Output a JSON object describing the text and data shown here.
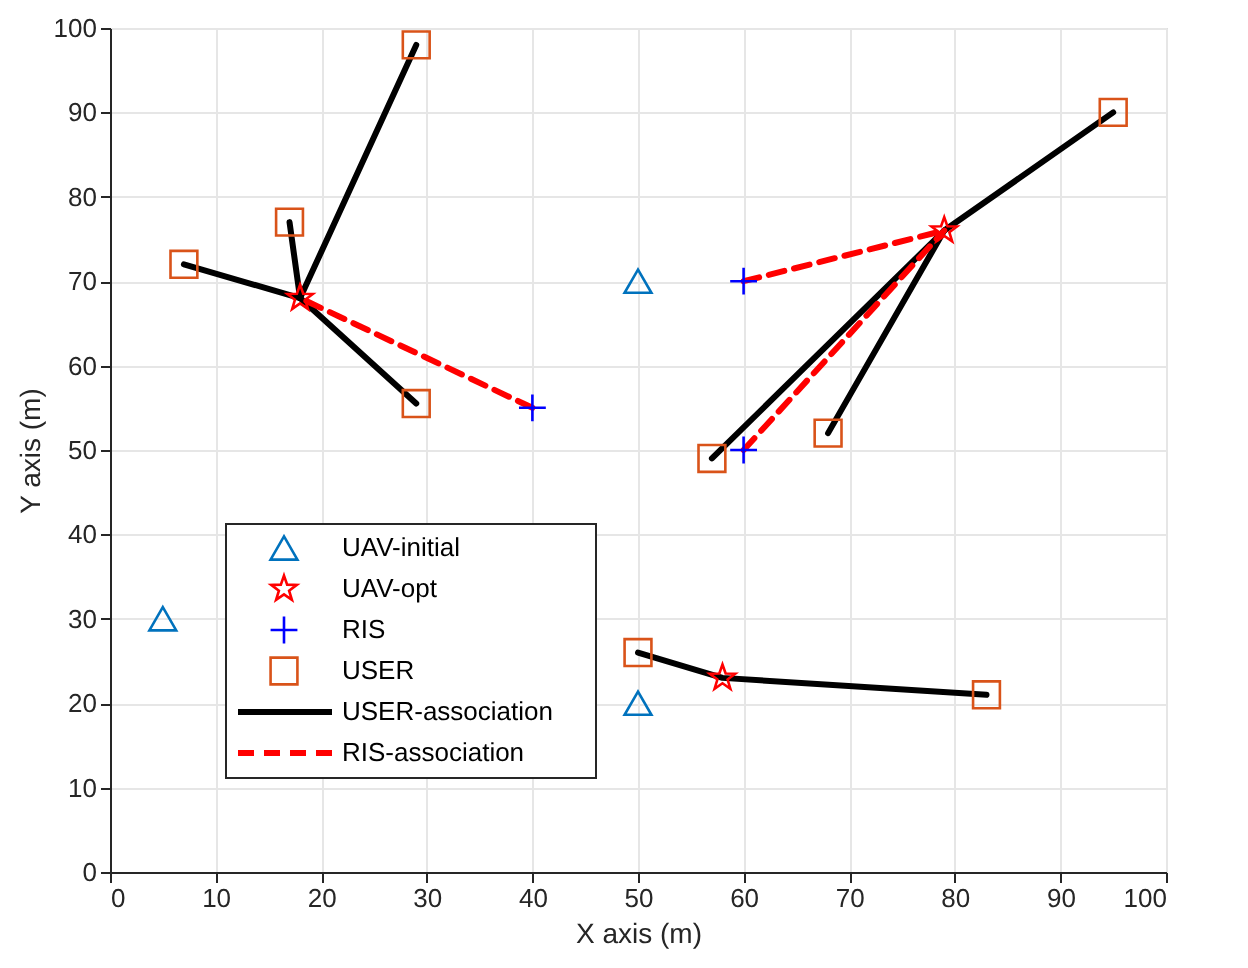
{
  "chart_data": {
    "type": "scatter",
    "xlabel": "X axis (m)",
    "ylabel": "Y axis (m)",
    "xlim": [
      0,
      100
    ],
    "ylim": [
      0,
      100
    ],
    "xticks": [
      0,
      10,
      20,
      30,
      40,
      50,
      60,
      70,
      80,
      90,
      100
    ],
    "yticks": [
      0,
      10,
      20,
      30,
      40,
      50,
      60,
      70,
      80,
      90,
      100
    ],
    "grid": true,
    "legend": "bottom left",
    "series": [
      {
        "name": "UAV-initial",
        "marker": "triangle",
        "color": "#0072bd",
        "x": [
          5,
          50,
          50
        ],
        "values": [
          30,
          70,
          20
        ]
      },
      {
        "name": "UAV-opt",
        "marker": "star",
        "color": "#ff0000",
        "x": [
          18,
          79,
          58
        ],
        "values": [
          68,
          76,
          23
        ]
      },
      {
        "name": "RIS",
        "marker": "cross",
        "color": "#0000ff",
        "x": [
          40,
          60,
          60
        ],
        "values": [
          55,
          70,
          50
        ]
      },
      {
        "name": "USER",
        "marker": "square",
        "color": "#d95319",
        "x": [
          7,
          17,
          29,
          29,
          95,
          57,
          68,
          50,
          83
        ],
        "values": [
          72,
          77,
          98,
          55.5,
          90,
          49,
          52,
          26,
          21
        ]
      },
      {
        "name": "USER-association",
        "type": "line",
        "line_style": "solid",
        "color": "#000000",
        "x": [
          7,
          18
        ],
        "values": [
          72,
          68
        ]
      },
      {
        "type": "line",
        "line_style": "solid",
        "color": "#000000",
        "x": [
          17,
          18
        ],
        "values": [
          77,
          68
        ]
      },
      {
        "type": "line",
        "line_style": "solid",
        "color": "#000000",
        "x": [
          29,
          18
        ],
        "values": [
          98,
          68
        ]
      },
      {
        "type": "line",
        "line_style": "solid",
        "color": "#000000",
        "x": [
          29,
          18
        ],
        "values": [
          55.5,
          68
        ]
      },
      {
        "type": "line",
        "line_style": "solid",
        "color": "#000000",
        "x": [
          95,
          79
        ],
        "values": [
          90,
          76
        ]
      },
      {
        "type": "line",
        "line_style": "solid",
        "color": "#000000",
        "x": [
          57,
          79
        ],
        "values": [
          49,
          76
        ]
      },
      {
        "type": "line",
        "line_style": "solid",
        "color": "#000000",
        "x": [
          68,
          79
        ],
        "values": [
          52,
          76
        ]
      },
      {
        "type": "line",
        "line_style": "solid",
        "color": "#000000",
        "x": [
          50,
          58,
          83
        ],
        "values": [
          26,
          23,
          21
        ]
      },
      {
        "name": "RIS-association",
        "type": "line",
        "line_style": "dashed",
        "color": "#ff0000",
        "x": [
          40,
          18
        ],
        "values": [
          55,
          68
        ]
      },
      {
        "type": "line",
        "line_style": "dashed",
        "color": "#ff0000",
        "x": [
          60,
          79
        ],
        "values": [
          70,
          76
        ]
      },
      {
        "type": "line",
        "line_style": "dashed",
        "color": "#ff0000",
        "x": [
          60,
          79
        ],
        "values": [
          50,
          76
        ]
      }
    ]
  }
}
